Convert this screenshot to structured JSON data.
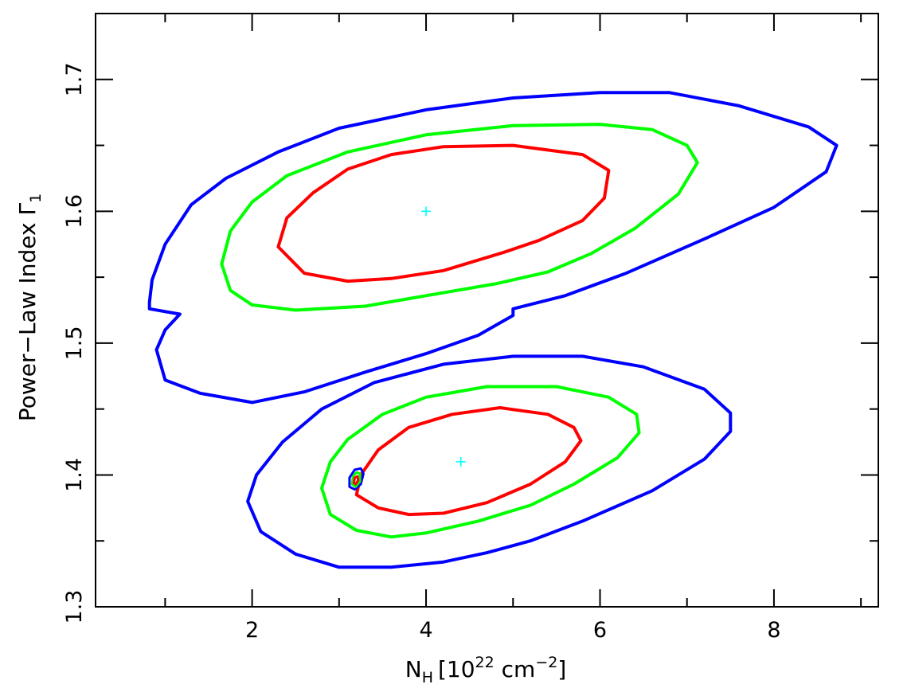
{
  "chart_data": {
    "type": "contour",
    "xlabel": {
      "main": "N",
      "sub": "H",
      "pre": "[10",
      "sup": "22",
      "mid": " cm",
      "sup2": "−2",
      "post": "]"
    },
    "ylabel": {
      "main": "Power−Law Index Γ",
      "sub": "1"
    },
    "xlim": [
      0.2,
      9.2
    ],
    "ylim": [
      1.3,
      1.75
    ],
    "xticks": [
      2,
      4,
      6,
      8
    ],
    "yticks": [
      1.3,
      1.4,
      1.5,
      1.6,
      1.7
    ],
    "xtick_labels": [
      "2",
      "4",
      "6",
      "8"
    ],
    "ytick_labels": [
      "1.3",
      "1.4",
      "1.5",
      "1.6",
      "1.7"
    ],
    "grid": false,
    "colors": {
      "red": "#ff0000",
      "green": "#00ff00",
      "blue": "#0000ff",
      "cross": "#00ffff"
    },
    "best_fits": [
      {
        "x": 4.0,
        "y": 1.6
      },
      {
        "x": 4.4,
        "y": 1.41
      }
    ],
    "contours": [
      {
        "color": "red",
        "points": [
          [
            2.3,
            1.573
          ],
          [
            2.4,
            1.595
          ],
          [
            2.7,
            1.614
          ],
          [
            3.1,
            1.632
          ],
          [
            3.6,
            1.643
          ],
          [
            4.2,
            1.649
          ],
          [
            5.0,
            1.65
          ],
          [
            5.8,
            1.643
          ],
          [
            6.1,
            1.631
          ],
          [
            6.05,
            1.61
          ],
          [
            5.8,
            1.593
          ],
          [
            5.3,
            1.578
          ],
          [
            4.9,
            1.569
          ],
          [
            4.2,
            1.555
          ],
          [
            3.6,
            1.549
          ],
          [
            3.1,
            1.547
          ],
          [
            2.6,
            1.553
          ],
          [
            2.3,
            1.573
          ]
        ]
      },
      {
        "color": "green",
        "points": [
          [
            1.65,
            1.56
          ],
          [
            1.75,
            1.585
          ],
          [
            2.0,
            1.607
          ],
          [
            2.4,
            1.627
          ],
          [
            3.1,
            1.645
          ],
          [
            4.0,
            1.658
          ],
          [
            5.0,
            1.665
          ],
          [
            6.0,
            1.666
          ],
          [
            6.6,
            1.662
          ],
          [
            7.0,
            1.65
          ],
          [
            7.12,
            1.637
          ],
          [
            6.9,
            1.613
          ],
          [
            6.4,
            1.587
          ],
          [
            5.9,
            1.568
          ],
          [
            5.4,
            1.554
          ],
          [
            4.8,
            1.545
          ],
          [
            4.0,
            1.536
          ],
          [
            3.3,
            1.528
          ],
          [
            2.5,
            1.525
          ],
          [
            2.0,
            1.529
          ],
          [
            1.75,
            1.54
          ],
          [
            1.65,
            1.56
          ]
        ]
      },
      {
        "color": "blue",
        "points": [
          [
            0.82,
            1.531
          ],
          [
            0.85,
            1.548
          ],
          [
            1.0,
            1.575
          ],
          [
            1.3,
            1.605
          ],
          [
            1.7,
            1.625
          ],
          [
            2.3,
            1.645
          ],
          [
            3.0,
            1.663
          ],
          [
            4.0,
            1.677
          ],
          [
            5.0,
            1.686
          ],
          [
            6.0,
            1.69
          ],
          [
            6.8,
            1.69
          ],
          [
            7.6,
            1.68
          ],
          [
            8.4,
            1.664
          ],
          [
            8.72,
            1.65
          ],
          [
            8.6,
            1.63
          ],
          [
            8.0,
            1.603
          ],
          [
            7.2,
            1.579
          ],
          [
            6.3,
            1.553
          ],
          [
            5.6,
            1.536
          ],
          [
            5.0,
            1.526
          ],
          [
            5.0,
            1.521
          ],
          [
            4.6,
            1.506
          ],
          [
            4.0,
            1.492
          ],
          [
            3.3,
            1.478
          ],
          [
            2.6,
            1.463
          ],
          [
            2.0,
            1.455
          ],
          [
            1.4,
            1.462
          ],
          [
            1.0,
            1.472
          ],
          [
            0.9,
            1.495
          ],
          [
            1.0,
            1.51
          ],
          [
            1.17,
            1.522
          ],
          [
            0.82,
            1.526
          ],
          [
            0.82,
            1.531
          ]
        ]
      },
      {
        "color": "red",
        "points": [
          [
            3.2,
            1.385
          ],
          [
            3.25,
            1.4
          ],
          [
            3.45,
            1.419
          ],
          [
            3.8,
            1.436
          ],
          [
            4.3,
            1.446
          ],
          [
            4.85,
            1.451
          ],
          [
            5.4,
            1.446
          ],
          [
            5.7,
            1.436
          ],
          [
            5.78,
            1.426
          ],
          [
            5.6,
            1.41
          ],
          [
            5.2,
            1.393
          ],
          [
            4.7,
            1.379
          ],
          [
            4.2,
            1.371
          ],
          [
            3.8,
            1.37
          ],
          [
            3.45,
            1.375
          ],
          [
            3.2,
            1.385
          ]
        ]
      },
      {
        "color": "green",
        "points": [
          [
            2.8,
            1.39
          ],
          [
            2.9,
            1.41
          ],
          [
            3.1,
            1.427
          ],
          [
            3.5,
            1.446
          ],
          [
            4.0,
            1.459
          ],
          [
            4.7,
            1.467
          ],
          [
            5.5,
            1.467
          ],
          [
            6.1,
            1.459
          ],
          [
            6.42,
            1.446
          ],
          [
            6.45,
            1.432
          ],
          [
            6.2,
            1.413
          ],
          [
            5.7,
            1.393
          ],
          [
            5.2,
            1.377
          ],
          [
            4.6,
            1.365
          ],
          [
            4.0,
            1.356
          ],
          [
            3.6,
            1.353
          ],
          [
            3.2,
            1.358
          ],
          [
            2.9,
            1.37
          ],
          [
            2.8,
            1.39
          ]
        ]
      },
      {
        "color": "blue",
        "points": [
          [
            1.95,
            1.38
          ],
          [
            2.05,
            1.4
          ],
          [
            2.35,
            1.425
          ],
          [
            2.8,
            1.45
          ],
          [
            3.4,
            1.47
          ],
          [
            4.2,
            1.484
          ],
          [
            5.0,
            1.49
          ],
          [
            5.8,
            1.49
          ],
          [
            6.5,
            1.482
          ],
          [
            7.2,
            1.465
          ],
          [
            7.5,
            1.447
          ],
          [
            7.5,
            1.433
          ],
          [
            7.2,
            1.412
          ],
          [
            6.6,
            1.388
          ],
          [
            5.8,
            1.365
          ],
          [
            5.2,
            1.35
          ],
          [
            4.7,
            1.341
          ],
          [
            4.2,
            1.334
          ],
          [
            3.6,
            1.33
          ],
          [
            3.0,
            1.33
          ],
          [
            2.5,
            1.34
          ],
          [
            2.1,
            1.357
          ],
          [
            1.95,
            1.38
          ]
        ]
      },
      {
        "color": "blue",
        "points": [
          [
            3.12,
            1.391
          ],
          [
            3.12,
            1.398
          ],
          [
            3.18,
            1.404
          ],
          [
            3.25,
            1.405
          ],
          [
            3.28,
            1.401
          ],
          [
            3.25,
            1.393
          ],
          [
            3.18,
            1.389
          ],
          [
            3.12,
            1.391
          ]
        ]
      },
      {
        "color": "green",
        "points": [
          [
            3.15,
            1.393
          ],
          [
            3.16,
            1.399
          ],
          [
            3.2,
            1.402
          ],
          [
            3.24,
            1.401
          ],
          [
            3.24,
            1.395
          ],
          [
            3.19,
            1.391
          ],
          [
            3.15,
            1.393
          ]
        ]
      },
      {
        "color": "red",
        "points": [
          [
            3.17,
            1.394
          ],
          [
            3.18,
            1.398
          ],
          [
            3.21,
            1.399
          ],
          [
            3.22,
            1.396
          ],
          [
            3.19,
            1.393
          ],
          [
            3.17,
            1.394
          ]
        ]
      }
    ]
  }
}
